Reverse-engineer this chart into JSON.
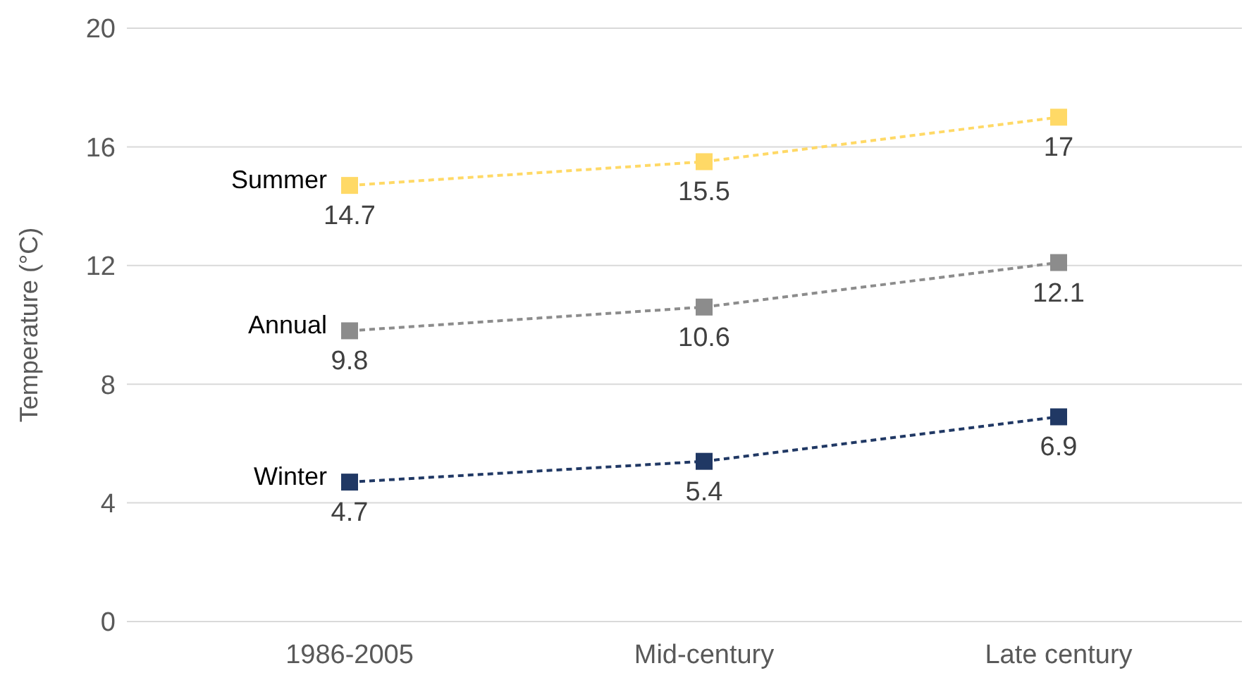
{
  "chart_data": {
    "type": "line",
    "ylabel": "Temperature (°C)",
    "categories": [
      "1986-2005",
      "Mid-century",
      "Late century"
    ],
    "series": [
      {
        "name": "Summer",
        "color": "#ffd966",
        "values": [
          14.7,
          15.5,
          17
        ]
      },
      {
        "name": "Annual",
        "color": "#8c8c8c",
        "values": [
          9.8,
          10.6,
          12.1
        ]
      },
      {
        "name": "Winter",
        "color": "#203864",
        "values": [
          4.7,
          5.4,
          6.9
        ]
      }
    ],
    "ylim": [
      0,
      20
    ],
    "yticks": [
      0,
      4,
      8,
      12,
      16,
      20
    ],
    "grid": "y",
    "marker": "square",
    "line_style": "dashed",
    "data_labels": true
  }
}
